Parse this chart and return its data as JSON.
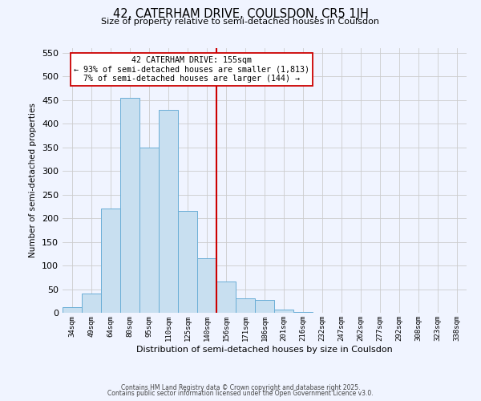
{
  "title": "42, CATERHAM DRIVE, COULSDON, CR5 1JH",
  "subtitle": "Size of property relative to semi-detached houses in Coulsdon",
  "xlabel": "Distribution of semi-detached houses by size in Coulsdon",
  "ylabel": "Number of semi-detached properties",
  "bin_labels": [
    "34sqm",
    "49sqm",
    "64sqm",
    "80sqm",
    "95sqm",
    "110sqm",
    "125sqm",
    "140sqm",
    "156sqm",
    "171sqm",
    "186sqm",
    "201sqm",
    "216sqm",
    "232sqm",
    "247sqm",
    "262sqm",
    "277sqm",
    "292sqm",
    "308sqm",
    "323sqm",
    "338sqm"
  ],
  "bar_heights": [
    12,
    40,
    220,
    455,
    350,
    430,
    215,
    115,
    67,
    30,
    28,
    7,
    2,
    0,
    0,
    0,
    0,
    0,
    0,
    0,
    0
  ],
  "bar_color": "#c8dff0",
  "bar_edge_color": "#6aaed6",
  "property_line_color": "#cc0000",
  "property_line_bin": 8,
  "ylim": [
    0,
    560
  ],
  "yticks": [
    0,
    50,
    100,
    150,
    200,
    250,
    300,
    350,
    400,
    450,
    500,
    550
  ],
  "annotation_title": "42 CATERHAM DRIVE: 155sqm",
  "annotation_line1": "← 93% of semi-detached houses are smaller (1,813)",
  "annotation_line2": "7% of semi-detached houses are larger (144) →",
  "annotation_box_color": "#ffffff",
  "annotation_box_edge": "#cc0000",
  "footer_line1": "Contains HM Land Registry data © Crown copyright and database right 2025.",
  "footer_line2": "Contains public sector information licensed under the Open Government Licence v3.0.",
  "background_color": "#f0f4ff",
  "grid_color": "#cccccc"
}
